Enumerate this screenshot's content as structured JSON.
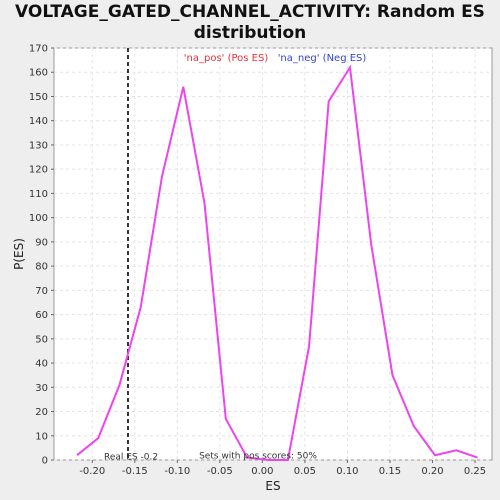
{
  "chart_data": {
    "type": "line",
    "title_line1": "VOLTAGE_GATED_CHANNEL_ACTIVITY: Random ES",
    "title_line2": "distribution",
    "xlabel": "ES",
    "ylabel": "P(ES)",
    "xlim": [
      -0.245,
      0.27
    ],
    "ylim": [
      0,
      170
    ],
    "x_ticks": [
      -0.2,
      -0.15,
      -0.1,
      -0.05,
      0.0,
      0.05,
      0.1,
      0.15,
      0.2,
      0.25
    ],
    "x_tick_labels": [
      "-0.20",
      "-0.15",
      "-0.10",
      "-0.05",
      "0.00",
      "0.05",
      "0.10",
      "0.15",
      "0.20",
      "0.25"
    ],
    "y_ticks": [
      0,
      10,
      20,
      30,
      40,
      50,
      60,
      70,
      80,
      90,
      100,
      110,
      120,
      130,
      140,
      150,
      160,
      170
    ],
    "grid": true,
    "series": [
      {
        "name": "'na_pos' (Pos ES)",
        "color": "#e8303a",
        "x": [
          -0.218,
          -0.193,
          -0.168,
          -0.143,
          -0.118,
          -0.093,
          -0.068,
          -0.043,
          -0.018,
          0.007,
          0.03
        ],
        "values": [
          2,
          9,
          31,
          63,
          117,
          154,
          106,
          17,
          1,
          0,
          0
        ]
      },
      {
        "name": "'na_neg' (Neg ES)",
        "color": "#3344cc",
        "x": [
          0.03,
          0.055,
          0.078,
          0.103,
          0.128,
          0.153,
          0.178,
          0.203,
          0.228,
          0.253
        ],
        "values": [
          0,
          47,
          148,
          162,
          89,
          35,
          14,
          2,
          4,
          1
        ]
      }
    ],
    "curve_color": "#ee44ee",
    "real_es": {
      "label": "Real ES -0.2",
      "x": -0.158
    },
    "annotation": "Sets with pos scores: 50%"
  }
}
